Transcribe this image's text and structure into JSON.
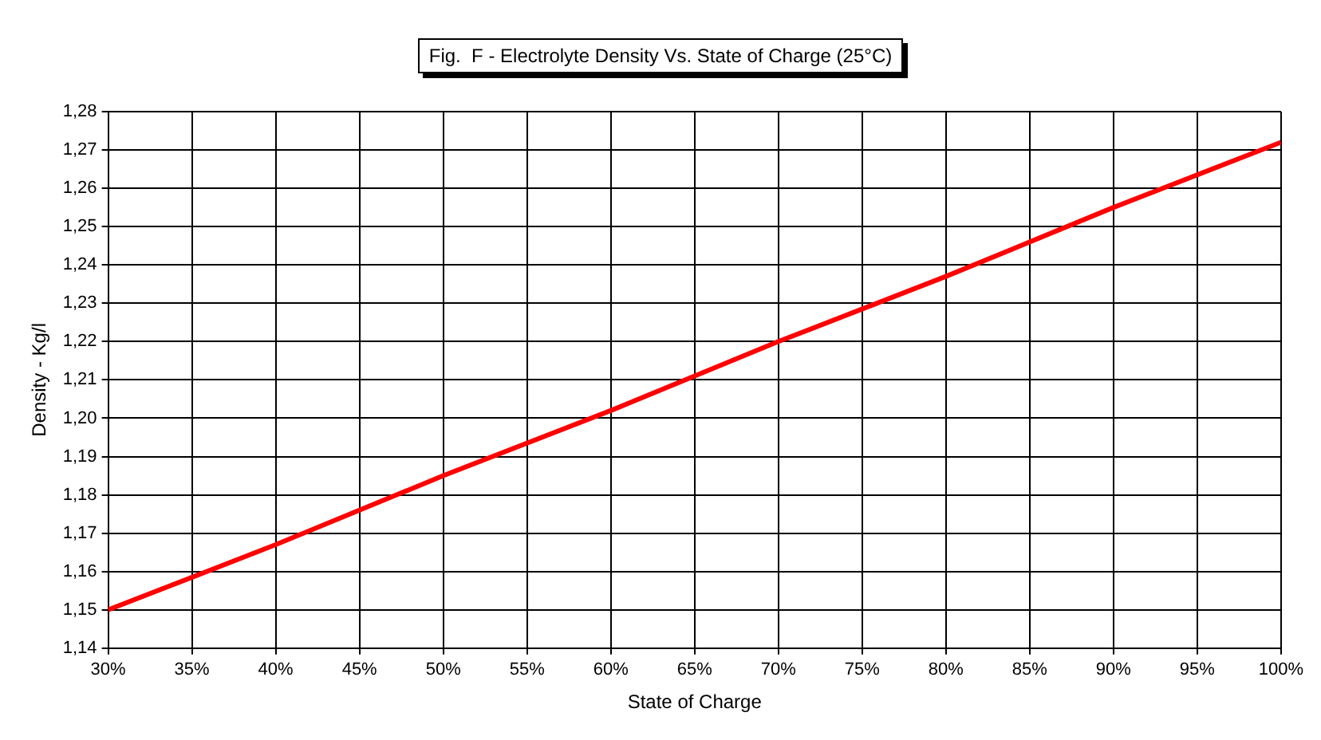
{
  "chart_data": {
    "type": "line",
    "title": "Fig.  F - Electrolyte Density Vs. State of Charge (25°C)",
    "xlabel": "State of Charge",
    "ylabel": "Density - Kg/l",
    "x": [
      30,
      40,
      50,
      60,
      70,
      80,
      90,
      100
    ],
    "series": [
      {
        "color": "#ff0000",
        "values": [
          1.15,
          1.167,
          1.185,
          1.202,
          1.22,
          1.237,
          1.255,
          1.272
        ]
      }
    ],
    "xlim": [
      30,
      100
    ],
    "xticks": [
      {
        "value": 30,
        "label": "30%"
      },
      {
        "value": 35,
        "label": "35%"
      },
      {
        "value": 40,
        "label": "40%"
      },
      {
        "value": 45,
        "label": "45%"
      },
      {
        "value": 50,
        "label": "50%"
      },
      {
        "value": 55,
        "label": "55%"
      },
      {
        "value": 60,
        "label": "60%"
      },
      {
        "value": 65,
        "label": "65%"
      },
      {
        "value": 70,
        "label": "70%"
      },
      {
        "value": 75,
        "label": "75%"
      },
      {
        "value": 80,
        "label": "80%"
      },
      {
        "value": 85,
        "label": "85%"
      },
      {
        "value": 90,
        "label": "90%"
      },
      {
        "value": 95,
        "label": "95%"
      },
      {
        "value": 100,
        "label": "100%"
      }
    ],
    "ylim": [
      1.14,
      1.28
    ],
    "yticks": [
      {
        "value": 1.14,
        "label": "1,14"
      },
      {
        "value": 1.15,
        "label": "1,15"
      },
      {
        "value": 1.16,
        "label": "1,16"
      },
      {
        "value": 1.17,
        "label": "1,17"
      },
      {
        "value": 1.18,
        "label": "1,18"
      },
      {
        "value": 1.19,
        "label": "1,19"
      },
      {
        "value": 1.2,
        "label": "1,20"
      },
      {
        "value": 1.21,
        "label": "1,21"
      },
      {
        "value": 1.22,
        "label": "1,22"
      },
      {
        "value": 1.23,
        "label": "1,23"
      },
      {
        "value": 1.24,
        "label": "1,24"
      },
      {
        "value": 1.25,
        "label": "1,25"
      },
      {
        "value": 1.26,
        "label": "1,26"
      },
      {
        "value": 1.27,
        "label": "1,27"
      },
      {
        "value": 1.28,
        "label": "1,28"
      }
    ],
    "grid": true,
    "legend": false,
    "marker": "none",
    "line_style": "solid"
  }
}
